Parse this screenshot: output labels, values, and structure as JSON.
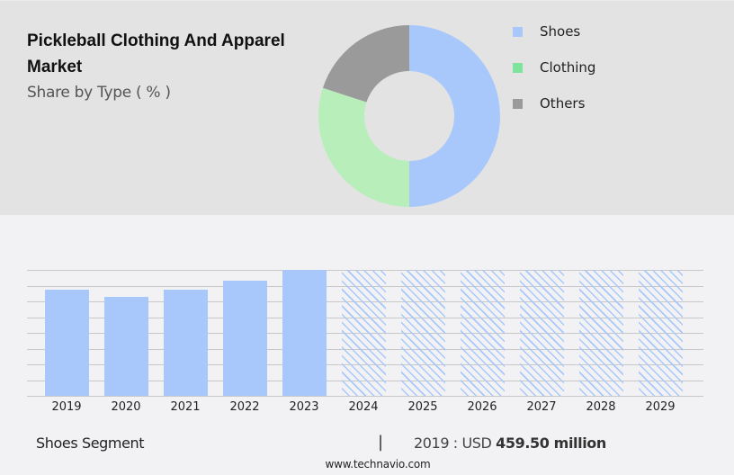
{
  "header": {
    "title": "Pickleball Clothing And Apparel Market",
    "subtitle": "Share by Type ( % )"
  },
  "legend": [
    {
      "label": "Shoes",
      "color": "#a8c8fc"
    },
    {
      "label": "Clothing",
      "color": "#7ee49c"
    },
    {
      "label": "Others",
      "color": "#9a9a9a"
    }
  ],
  "footer": {
    "segment": "Shoes Segment",
    "separator": "|",
    "value_prefix": "2019 : USD",
    "value_bold": "459.50 million",
    "url": "www.technavio.com"
  },
  "chart_data": [
    {
      "type": "pie",
      "title": "Pickleball Clothing And Apparel Market",
      "subtitle": "Share by Type ( % )",
      "donut": true,
      "categories": [
        "Shoes",
        "Clothing",
        "Others"
      ],
      "values": [
        50,
        30,
        20
      ],
      "colors": [
        "#a8c8fc",
        "#b8eeb9",
        "#9a9a9a"
      ],
      "legend_position": "right"
    },
    {
      "type": "bar",
      "title": "Shoes Segment",
      "categories": [
        "2019",
        "2020",
        "2021",
        "2022",
        "2023",
        "2024",
        "2025",
        "2026",
        "2027",
        "2028",
        "2029"
      ],
      "values": [
        459.5,
        428,
        459.5,
        498,
        545,
        545,
        545,
        545,
        545,
        545,
        545
      ],
      "forecast_from": "2024",
      "annotation": "2019 : USD 459.50 million",
      "xlabel": "",
      "ylabel": "",
      "grid": true,
      "ylim": [
        0,
        545
      ],
      "bar_color": "#a8c8fc",
      "forecast_style": "hatched"
    }
  ]
}
